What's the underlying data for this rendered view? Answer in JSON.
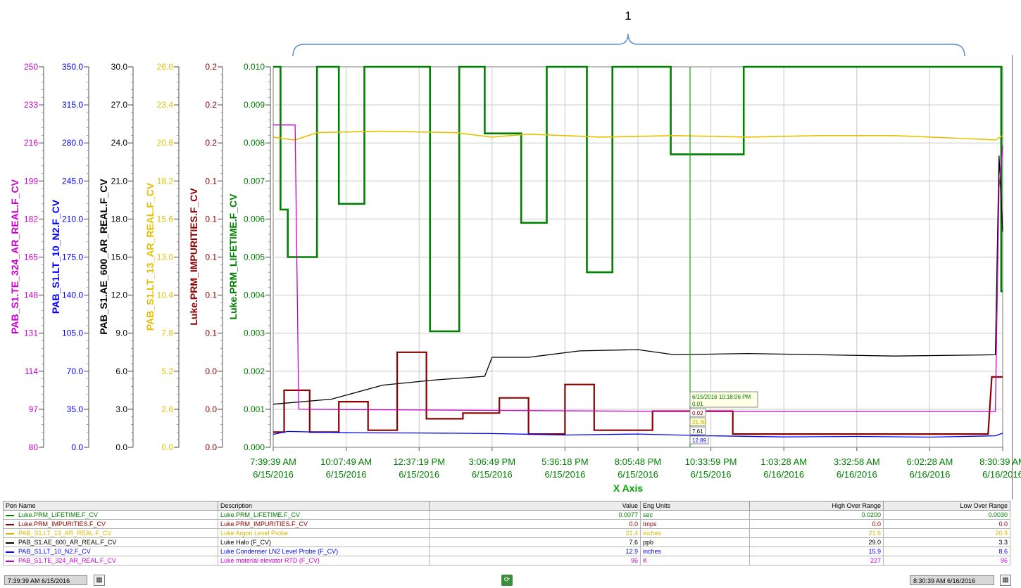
{
  "annotation": {
    "label": "1"
  },
  "axes": [
    {
      "id": "te324",
      "label": "PAB_S1.TE_324_AR_REAL.F_CV",
      "color": "#cc00cc",
      "ticks": [
        "250",
        "233",
        "216",
        "199",
        "182",
        "165",
        "148",
        "131",
        "114",
        "97",
        "80"
      ]
    },
    {
      "id": "lt10",
      "label": "PAB_S1.LT_10_N2.F_CV",
      "color": "#0000ff",
      "ticks": [
        "350.0",
        "315.0",
        "280.0",
        "245.0",
        "210.0",
        "175.0",
        "140.0",
        "105.0",
        "70.0",
        "35.0",
        "0.0"
      ]
    },
    {
      "id": "ae600",
      "label": "PAB_S1.AE_600_AR_REAL.F_CV",
      "color": "#000000",
      "ticks": [
        "30.0",
        "27.0",
        "24.0",
        "21.0",
        "18.0",
        "15.0",
        "12.0",
        "9.0",
        "6.0",
        "3.0",
        "0.0"
      ]
    },
    {
      "id": "lt13",
      "label": "PAB_S1.LT_13_AR_REAL.F_CV",
      "color": "#e6c000",
      "ticks": [
        "26.0",
        "23.4",
        "20.8",
        "18.2",
        "15.6",
        "13.0",
        "10.4",
        "7.8",
        "5.2",
        "2.6",
        "0.0"
      ]
    },
    {
      "id": "imp",
      "label": "Luke.PRM_IMPURITIES.F_CV",
      "color": "#8b0000",
      "ticks": [
        "0.2",
        "0.2",
        "0.2",
        "0.1",
        "0.1",
        "0.1",
        "0.1",
        "0.1",
        "0.0",
        "0.0",
        "0.0"
      ]
    },
    {
      "id": "life",
      "label": "Luke.PRM_LIFETIME.F_CV",
      "color": "#008000",
      "ticks": [
        "0.010",
        "0.009",
        "0.008",
        "0.007",
        "0.006",
        "0.005",
        "0.004",
        "0.003",
        "0.002",
        "0.001",
        "0.000"
      ]
    }
  ],
  "x_axis": {
    "title": "X Axis",
    "ticks": [
      [
        "7:39:39 AM",
        "6/15/2016"
      ],
      [
        "10:07:49 AM",
        "6/15/2016"
      ],
      [
        "12:37:19 PM",
        "6/15/2016"
      ],
      [
        "3:06:49 PM",
        "6/15/2016"
      ],
      [
        "5:36:18 PM",
        "6/15/2016"
      ],
      [
        "8:05:48 PM",
        "6/15/2016"
      ],
      [
        "10:33:59 PM",
        "6/15/2016"
      ],
      [
        "1:03:28 AM",
        "6/16/2016"
      ],
      [
        "3:32:58 AM",
        "6/16/2016"
      ],
      [
        "6:02:28 AM",
        "6/16/2016"
      ],
      [
        "8:30:39 AM",
        "6/16/2016"
      ]
    ]
  },
  "cursor": {
    "timestamp": "6/15/2016 10:18:06 PM",
    "values": [
      {
        "text": "0.01",
        "color": "#008000"
      },
      {
        "text": "0.02",
        "color": "#8b0000"
      },
      {
        "text": "21.40",
        "color": "#e6c000"
      },
      {
        "text": "7.61",
        "color": "#000000"
      },
      {
        "text": "12.89",
        "color": "#0000ff"
      }
    ]
  },
  "legend": {
    "headers": {
      "pen": "Pen Name",
      "desc": "Description",
      "value": "Value",
      "units": "Eng Units",
      "high": "High Over Range",
      "low": "Low Over Range"
    },
    "rows": [
      {
        "pen": "Luke.PRM_LIFETIME.F_CV",
        "desc": "Luke.PRM_LIFETIME.F_CV",
        "value": "0.0077",
        "units": "sec",
        "high": "0.0200",
        "low": "0.0030",
        "color": "#008000"
      },
      {
        "pen": "Luke.PRM_IMPURITIES.F_CV",
        "desc": "Luke.PRM_IMPURITIES.F_CV",
        "value": "0.0",
        "units": "Imps",
        "high": "0.0",
        "low": "0.0",
        "color": "#8b0000"
      },
      {
        "pen": "PAB_S1.LT_13_AR_REAL.F_CV",
        "desc": "Luke Argon Level Probe",
        "value": "21.4",
        "units": "inches",
        "high": "21.6",
        "low": "20.9",
        "color": "#e6c000"
      },
      {
        "pen": "PAB_S1.AE_600_AR_REAL.F_CV",
        "desc": "Luke Halo (F_CV)",
        "value": "7.6",
        "units": "ppb",
        "high": "29.0",
        "low": "3.3",
        "color": "#000000"
      },
      {
        "pen": "PAB_S1.LT_10_N2.F_CV",
        "desc": "Luke Condenser LN2 Level Probe (F_CV)",
        "value": "12.9",
        "units": "inches",
        "high": "15.9",
        "low": "8.6",
        "color": "#0000ff"
      },
      {
        "pen": "PAB_S1.TE_324_AR_REAL.F_CV",
        "desc": "Luke material elevator RTD (F_CV)",
        "value": "96",
        "units": "K",
        "high": "227",
        "low": "96",
        "color": "#cc00cc"
      }
    ]
  },
  "status": {
    "start_time": "7:39:39 AM 6/15/2016",
    "end_time": "8:30:39 AM 6/16/2016"
  },
  "chart_data": {
    "type": "line",
    "x_label": "X Axis",
    "x_range": [
      "6/15/2016 7:39:39 AM",
      "6/16/2016 8:30:39 AM"
    ],
    "x_ticks": [
      "7:39:39 AM 6/15/2016",
      "10:07:49 AM 6/15/2016",
      "12:37:19 PM 6/15/2016",
      "3:06:49 PM 6/15/2016",
      "5:36:18 PM 6/15/2016",
      "8:05:48 PM 6/15/2016",
      "10:33:59 PM 6/15/2016",
      "1:03:28 AM 6/16/2016",
      "3:32:58 AM 6/16/2016",
      "6:02:28 AM 6/16/2016",
      "8:30:39 AM 6/16/2016"
    ],
    "grid": true,
    "series": [
      {
        "name": "Luke.PRM_LIFETIME.F_CV",
        "axis": "life",
        "ylim": [
          0,
          0.01
        ],
        "color": "#008000",
        "points": [
          [
            0,
            0.01
          ],
          [
            0.1,
            0.01
          ],
          [
            0.1,
            0.00625
          ],
          [
            0.2,
            0.00625
          ],
          [
            0.2,
            0.005
          ],
          [
            0.6,
            0.005
          ],
          [
            0.6,
            0.01
          ],
          [
            0.9,
            0.01
          ],
          [
            0.9,
            0.0064
          ],
          [
            1.25,
            0.0064
          ],
          [
            1.25,
            0.01
          ],
          [
            2.15,
            0.01
          ],
          [
            2.15,
            0.00305
          ],
          [
            2.55,
            0.00305
          ],
          [
            2.55,
            0.01
          ],
          [
            2.9,
            0.01
          ],
          [
            2.9,
            0.00825
          ],
          [
            3.4,
            0.00825
          ],
          [
            3.4,
            0.0059
          ],
          [
            3.75,
            0.0059
          ],
          [
            3.75,
            0.01
          ],
          [
            4.3,
            0.01
          ],
          [
            4.3,
            0.0046
          ],
          [
            4.65,
            0.0046
          ],
          [
            4.65,
            0.01
          ],
          [
            5.45,
            0.01
          ],
          [
            5.45,
            0.0077
          ],
          [
            6.45,
            0.0077
          ],
          [
            6.45,
            0.01
          ],
          [
            9.98,
            0.01
          ],
          [
            9.98,
            0.0041
          ],
          [
            10.0,
            0.0041
          ]
        ]
      },
      {
        "name": "Luke.PRM_IMPURITIES.F_CV",
        "axis": "imp",
        "ylim": [
          0,
          0.2
        ],
        "color": "#8b0000",
        "points": [
          [
            0,
            0.008
          ],
          [
            0.15,
            0.008
          ],
          [
            0.15,
            0.03
          ],
          [
            0.5,
            0.03
          ],
          [
            0.5,
            0.008
          ],
          [
            0.9,
            0.008
          ],
          [
            0.9,
            0.024
          ],
          [
            1.3,
            0.024
          ],
          [
            1.3,
            0.009
          ],
          [
            1.7,
            0.009
          ],
          [
            1.7,
            0.05
          ],
          [
            2.1,
            0.05
          ],
          [
            2.1,
            0.015
          ],
          [
            2.6,
            0.015
          ],
          [
            2.6,
            0.018
          ],
          [
            3.1,
            0.018
          ],
          [
            3.1,
            0.026
          ],
          [
            3.5,
            0.026
          ],
          [
            3.5,
            0.007
          ],
          [
            4.0,
            0.007
          ],
          [
            4.0,
            0.033
          ],
          [
            4.4,
            0.033
          ],
          [
            4.4,
            0.009
          ],
          [
            5.2,
            0.009
          ],
          [
            5.2,
            0.019
          ],
          [
            6.3,
            0.019
          ],
          [
            6.3,
            0.007
          ],
          [
            9.8,
            0.007
          ],
          [
            9.85,
            0.037
          ],
          [
            10.0,
            0.037
          ]
        ]
      },
      {
        "name": "PAB_S1.LT_13_AR_REAL.F_CV",
        "axis": "lt13",
        "ylim": [
          0,
          26
        ],
        "color": "#e6c000",
        "points": [
          [
            0,
            21.2
          ],
          [
            0.3,
            21.0
          ],
          [
            0.6,
            21.5
          ],
          [
            1.5,
            21.6
          ],
          [
            2.5,
            21.5
          ],
          [
            3.0,
            21.2
          ],
          [
            3.5,
            21.4
          ],
          [
            4.5,
            21.2
          ],
          [
            5.5,
            21.3
          ],
          [
            6.5,
            21.2
          ],
          [
            7.5,
            21.3
          ],
          [
            8.5,
            21.3
          ],
          [
            9.5,
            21.1
          ],
          [
            9.9,
            21.0
          ],
          [
            10.0,
            21.3
          ]
        ]
      },
      {
        "name": "PAB_S1.AE_600_AR_REAL.F_CV",
        "axis": "ae600",
        "ylim": [
          0,
          30
        ],
        "color": "#000000",
        "points": [
          [
            0,
            3.4
          ],
          [
            0.8,
            3.8
          ],
          [
            1.5,
            4.9
          ],
          [
            2.2,
            5.3
          ],
          [
            2.9,
            5.6
          ],
          [
            3.0,
            7.1
          ],
          [
            3.5,
            7.1
          ],
          [
            4.2,
            7.6
          ],
          [
            5.0,
            7.7
          ],
          [
            5.5,
            7.3
          ],
          [
            6.5,
            7.4
          ],
          [
            7.5,
            7.3
          ],
          [
            8.5,
            7.2
          ],
          [
            9.9,
            7.3
          ],
          [
            9.95,
            23.0
          ],
          [
            10.0,
            17.0
          ]
        ]
      },
      {
        "name": "PAB_S1.LT_10_N2.F_CV",
        "axis": "lt10",
        "ylim": [
          0,
          350
        ],
        "color": "#0000ff",
        "points": [
          [
            0,
            12.0
          ],
          [
            0.2,
            14.6
          ],
          [
            1.0,
            13.4
          ],
          [
            2.0,
            13.2
          ],
          [
            3.0,
            12.7
          ],
          [
            4.0,
            11.3
          ],
          [
            5.0,
            12.2
          ],
          [
            6.0,
            10.6
          ],
          [
            7.0,
            9.6
          ],
          [
            8.0,
            10.0
          ],
          [
            9.0,
            9.4
          ],
          [
            9.9,
            10.6
          ],
          [
            10.0,
            13.0
          ]
        ]
      },
      {
        "name": "PAB_S1.TE_324_AR_REAL.F_CV",
        "axis": "te324",
        "ylim": [
          80,
          250
        ],
        "color": "#cc00cc",
        "points": [
          [
            0,
            224
          ],
          [
            0.3,
            224
          ],
          [
            0.35,
            97
          ],
          [
            3.0,
            96.5
          ],
          [
            6.0,
            96
          ],
          [
            9.9,
            96
          ],
          [
            9.95,
            196
          ],
          [
            10.0,
            215
          ]
        ]
      }
    ]
  }
}
